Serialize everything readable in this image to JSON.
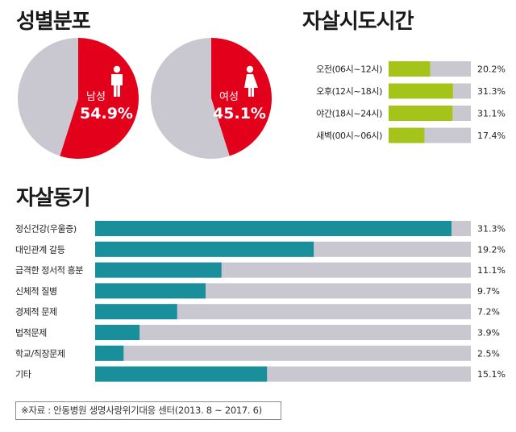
{
  "titles": {
    "gender": "성별분포",
    "time": "자살시도시간",
    "motive": "자살동기"
  },
  "source": "※자료 : 안동병원 생명사랑위기대응 센터(2013. 8 ~ 2017. 6)",
  "colors": {
    "red": "#e3001b",
    "gray": "#c9c8d0",
    "green": "#a5c41a",
    "teal": "#1a8f9c"
  },
  "icons": [
    "male-person-icon",
    "female-person-icon"
  ],
  "chart_data": [
    {
      "type": "pie",
      "slices": [
        {
          "label": "남성",
          "value": 54.9,
          "display": "54.9%",
          "color": "#e3001b"
        },
        {
          "label": "",
          "value": 45.1,
          "color": "#c9c8d0"
        }
      ]
    },
    {
      "type": "pie",
      "slices": [
        {
          "label": "여성",
          "value": 45.1,
          "display": "45.1%",
          "color": "#e3001b"
        },
        {
          "label": "",
          "value": 54.9,
          "color": "#c9c8d0"
        }
      ]
    },
    {
      "type": "bar",
      "orientation": "horizontal",
      "categories": [
        "오전(06시~12시)",
        "오후(12시~18시)",
        "야간(18시~24시)",
        "새벽(00시~06시)"
      ],
      "values": [
        20.2,
        31.3,
        31.1,
        17.4
      ],
      "labels": [
        "20.2%",
        "31.3%",
        "31.1%",
        "17.4%"
      ],
      "xlim": [
        0,
        40
      ],
      "color": "#a5c41a"
    },
    {
      "type": "bar",
      "orientation": "horizontal",
      "categories": [
        "정신건강(우울증)",
        "대인관계 갈등",
        "급격한 정서적 흥분",
        "신체적 질병",
        "경제적 문제",
        "법적문제",
        "학교/직장문제",
        "기타"
      ],
      "values": [
        31.3,
        19.2,
        11.1,
        9.7,
        7.2,
        3.9,
        2.5,
        15.1
      ],
      "labels": [
        "31.3%",
        "19.2%",
        "11.1%",
        "9.7%",
        "7.2%",
        "3.9%",
        "2.5%",
        "15.1%"
      ],
      "xlim": [
        0,
        33
      ],
      "color": "#1a8f9c"
    }
  ]
}
